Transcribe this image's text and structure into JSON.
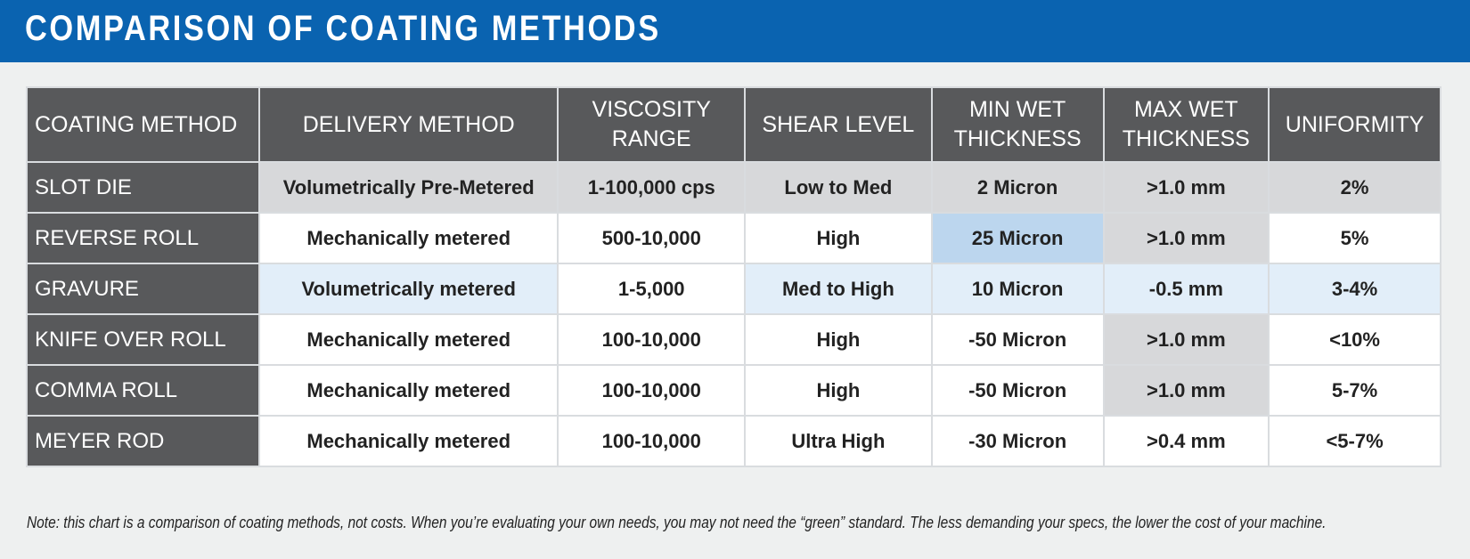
{
  "title": "COMPARISON OF COATING METHODS",
  "headers": [
    "COATING METHOD",
    "DELIVERY METHOD",
    "VISCOSITY RANGE",
    "SHEAR LEVEL",
    "MIN WET THICKNESS",
    "MAX WET THICKNESS",
    "UNIFORMITY"
  ],
  "rows": [
    {
      "method": "SLOT DIE",
      "delivery": "Volumetrically Pre-Metered",
      "viscosity": "1-100,000 cps",
      "shear": "Low to Med",
      "min_wet": "2 Micron",
      "max_wet": ">1.0 mm",
      "uniformity": "2%"
    },
    {
      "method": "REVERSE ROLL",
      "delivery": "Mechanically metered",
      "viscosity": "500-10,000",
      "shear": "High",
      "min_wet": "25 Micron",
      "max_wet": ">1.0 mm",
      "uniformity": "5%"
    },
    {
      "method": "GRAVURE",
      "delivery": "Volumetrically metered",
      "viscosity": "1-5,000",
      "shear": "Med to High",
      "min_wet": "10 Micron",
      "max_wet": "-0.5 mm",
      "uniformity": "3-4%"
    },
    {
      "method": "KNIFE OVER ROLL",
      "delivery": "Mechanically metered",
      "viscosity": "100-10,000",
      "shear": "High",
      "min_wet": "-50 Micron",
      "max_wet": ">1.0 mm",
      "uniformity": "<10%"
    },
    {
      "method": "COMMA ROLL",
      "delivery": "Mechanically metered",
      "viscosity": "100-10,000",
      "shear": "High",
      "min_wet": "-50 Micron",
      "max_wet": ">1.0 mm",
      "uniformity": "5-7%"
    },
    {
      "method": "MEYER ROD",
      "delivery": "Mechanically metered",
      "viscosity": "100-10,000",
      "shear": "Ultra High",
      "min_wet": "-30 Micron",
      "max_wet": ">0.4 mm",
      "uniformity": "<5-7%"
    }
  ],
  "note": "Note:  this chart is a comparison of coating methods, not costs. When you’re evaluating your own needs, you may not need the “green” standard. The less demanding your specs, the lower the cost of your machine.",
  "colors": {
    "banner": "#0a63b0",
    "header_bg": "#58595b",
    "cell_gray": "#d7d8da",
    "cell_light_blue": "#e2eef9",
    "cell_blue": "#bcd6ee",
    "background": "#eef0f0"
  }
}
